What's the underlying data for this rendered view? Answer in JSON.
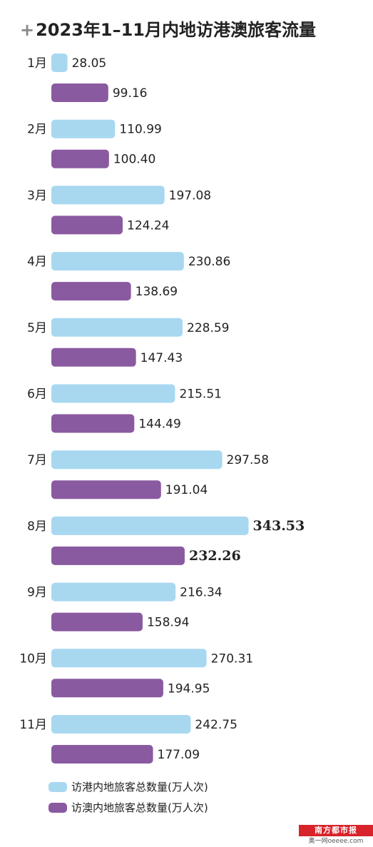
{
  "title": "2023年1–11月内地访港澳旅客流量",
  "title_mark": "+",
  "colors": {
    "hk": "#a8d8f0",
    "macau": "#8a5aa0"
  },
  "chart_data": {
    "type": "bar",
    "orientation": "horizontal",
    "categories": [
      "1月",
      "2月",
      "3月",
      "4月",
      "5月",
      "6月",
      "7月",
      "8月",
      "9月",
      "10月",
      "11月"
    ],
    "series": [
      {
        "name": "访港内地旅客总数量(万人次)",
        "values": [
          28.05,
          110.99,
          197.08,
          230.86,
          228.59,
          215.51,
          297.58,
          343.53,
          216.34,
          270.31,
          242.75
        ],
        "labels": [
          "28.05",
          "110.99",
          "197.08",
          "230.86",
          "228.59",
          "215.51",
          "297.58",
          "343.53",
          "216.34",
          "270.31",
          "242.75"
        ]
      },
      {
        "name": "访澳内地旅客总数量(万人次)",
        "values": [
          99.16,
          100.4,
          124.24,
          138.69,
          147.43,
          144.49,
          191.04,
          232.26,
          158.94,
          194.95,
          177.09
        ],
        "labels": [
          "99.16",
          "100.40",
          "124.24",
          "138.69",
          "147.43",
          "144.49",
          "191.04",
          "232.26",
          "158.94",
          "194.95",
          "177.09"
        ]
      }
    ],
    "highlight_category": "8月",
    "grid": false,
    "legend_position": "bottom-left"
  },
  "legend": [
    {
      "label": "访港内地旅客总数量(万人次)",
      "color": "#a8d8f0"
    },
    {
      "label": "访澳内地旅客总数量(万人次)",
      "color": "#8a5aa0"
    }
  ],
  "watermark": {
    "top": "南方都市报",
    "bottom": "奥一网oeeee.com"
  }
}
